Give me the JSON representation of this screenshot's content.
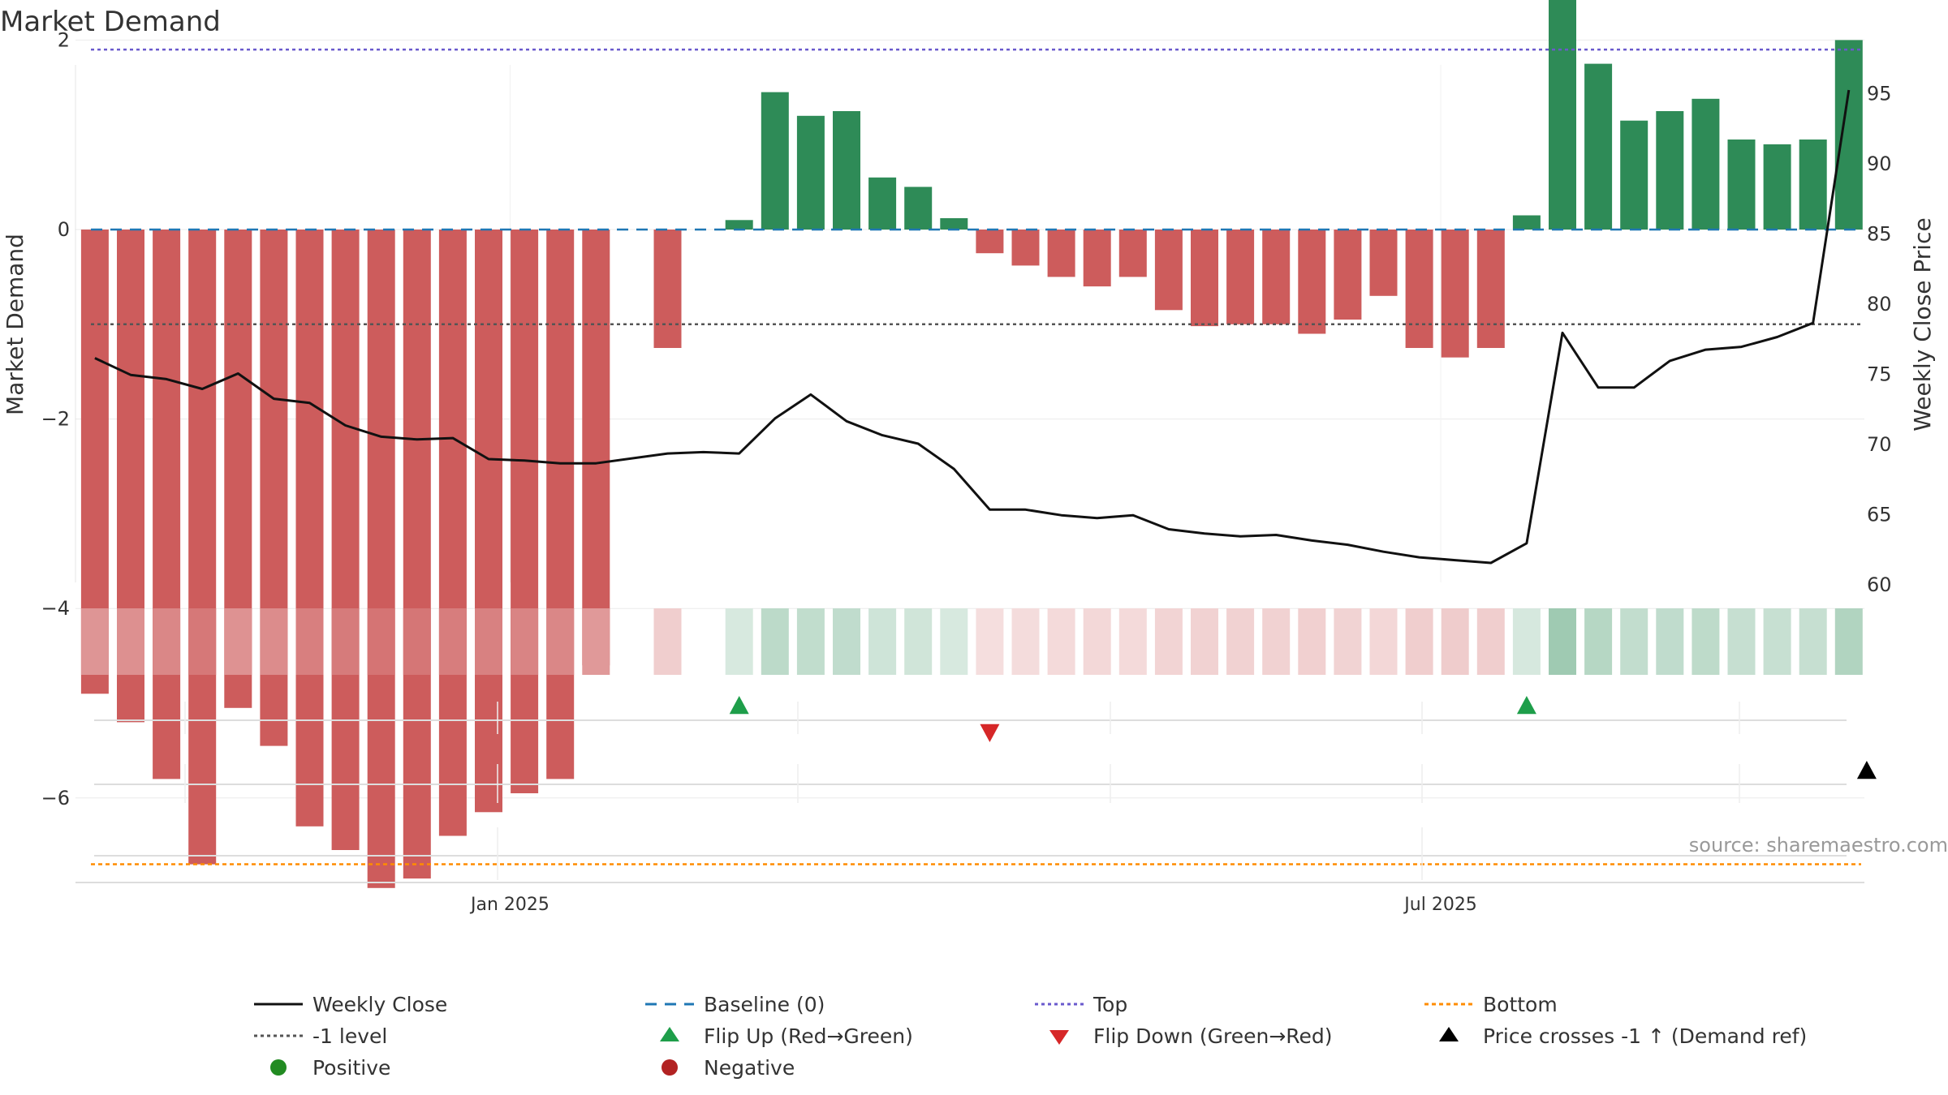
{
  "chart_data": {
    "type": "bar",
    "title": "Market Demand",
    "y_left_label": "Market Demand",
    "y_right_label": "Weekly Close Price",
    "y_left_ticks": [
      "−6",
      "−4",
      "−2",
      "0",
      "2"
    ],
    "y_right_ticks": [
      "60",
      "65",
      "70",
      "75",
      "80",
      "85",
      "90",
      "95"
    ],
    "x_ticks": [
      {
        "label": "Jan 2025",
        "week": 11.6
      },
      {
        "label": "Jul 2025",
        "week": 37.6
      }
    ],
    "y_left_range": [
      -7.6,
      3.4
    ],
    "y_right_range": [
      60,
      96
    ],
    "week_range": [
      -0.5,
      50.5
    ],
    "reference_lines": {
      "baseline": 0,
      "minus_one": -1,
      "top": 1.9,
      "bottom": -6.7
    },
    "series": [
      {
        "name": "Market Demand",
        "values": [
          -4.9,
          -5.2,
          -5.8,
          -6.7,
          -5.05,
          -5.45,
          -6.3,
          -6.55,
          -6.95,
          -6.85,
          -6.4,
          -6.15,
          -5.95,
          -5.8,
          -4.6,
          null,
          -1.25,
          null,
          0.1,
          1.45,
          1.2,
          1.25,
          0.55,
          0.45,
          0.12,
          -0.25,
          -0.38,
          -0.5,
          -0.6,
          -0.5,
          -0.85,
          -1.02,
          -1.0,
          -1.0,
          -1.1,
          -0.95,
          -0.7,
          -1.25,
          -1.35,
          -1.25,
          0.15,
          2.9,
          1.75,
          1.15,
          1.25,
          1.38,
          0.95,
          0.9,
          0.95,
          2.0
        ]
      },
      {
        "name": "Weekly Close",
        "values": [
          76.1,
          74.9,
          74.6,
          73.9,
          75.0,
          73.2,
          72.9,
          71.3,
          70.5,
          70.3,
          70.4,
          68.9,
          68.8,
          68.6,
          68.6,
          null,
          69.3,
          69.4,
          69.3,
          71.8,
          73.5,
          71.6,
          70.6,
          70.0,
          68.2,
          65.3,
          65.3,
          64.9,
          64.7,
          64.9,
          63.9,
          63.6,
          63.4,
          63.5,
          63.1,
          62.8,
          62.3,
          61.9,
          61.7,
          61.5,
          62.9,
          77.9,
          74.0,
          74.0,
          75.9,
          76.7,
          76.9,
          77.6,
          78.6,
          95.2
        ]
      }
    ],
    "flip_up_weeks": [
      18,
      40
    ],
    "flip_down_weeks": [
      25
    ],
    "price_cross_weeks": [
      49.5
    ],
    "colors": {
      "positive": "#2e8b57",
      "negative": "#cd5c5c",
      "price": "#111111",
      "baseline": "#1f77b4",
      "top": "#6a5acd",
      "bottom": "#ff8c00",
      "minus_one": "#555555",
      "flip_up": "#1e9e4a",
      "flip_down": "#d62728",
      "cross": "#000000",
      "legend_positive": "#228b22",
      "legend_negative": "#b22222"
    },
    "legend": [
      {
        "key": "weekly_close",
        "label": "Weekly Close",
        "symbol": "line-solid"
      },
      {
        "key": "baseline",
        "label": "Baseline (0)",
        "symbol": "line-dash"
      },
      {
        "key": "top",
        "label": "Top",
        "symbol": "line-dot-top"
      },
      {
        "key": "bottom",
        "label": "Bottom",
        "symbol": "line-dot-bottom"
      },
      {
        "key": "minus_one",
        "label": "-1 level",
        "symbol": "line-dot-grey"
      },
      {
        "key": "flip_up",
        "label": "Flip Up (Red→Green)",
        "symbol": "triangle-up-green"
      },
      {
        "key": "flip_down",
        "label": "Flip Down (Green→Red)",
        "symbol": "triangle-down-red"
      },
      {
        "key": "cross",
        "label": "Price crosses -1 ↑ (Demand ref)",
        "symbol": "triangle-up-black"
      },
      {
        "key": "positive",
        "label": "Positive",
        "symbol": "dot-green"
      },
      {
        "key": "negative",
        "label": "Negative",
        "symbol": "dot-red"
      }
    ],
    "legend_placement": "bottom",
    "grid": true,
    "source": "source: sharemaestro.com"
  }
}
